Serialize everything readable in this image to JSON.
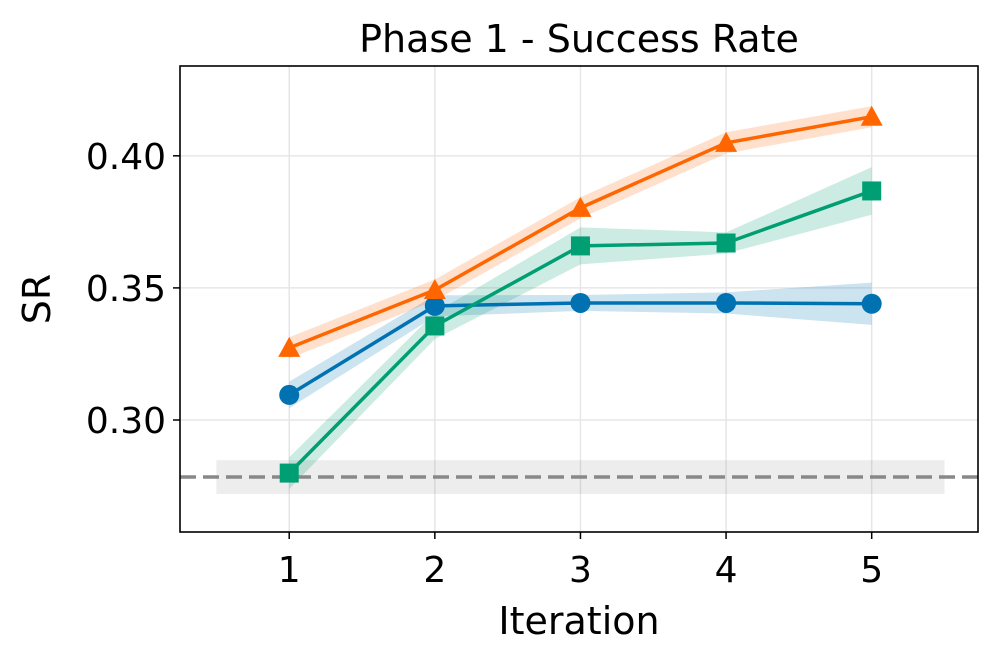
{
  "chart_data": {
    "type": "line",
    "title": "Phase 1 - Success Rate",
    "xlabel": "Iteration",
    "ylabel": "SR",
    "x": [
      1,
      2,
      3,
      4,
      5
    ],
    "xticks": [
      "1",
      "2",
      "3",
      "4",
      "5"
    ],
    "yticks": [
      "0.30",
      "0.35",
      "0.40"
    ],
    "ytick_values": [
      0.3,
      0.35,
      0.4
    ],
    "xlim": [
      0.25,
      5.73
    ],
    "ylim": [
      0.2576,
      0.434
    ],
    "grid": true,
    "series": [
      {
        "marker": "circle",
        "color": "#0072B2",
        "values": [
          0.3095,
          0.3432,
          0.3443,
          0.3443,
          0.344
        ],
        "err": [
          0.005,
          0.004,
          0.003,
          0.004,
          0.008
        ]
      },
      {
        "marker": "triangle",
        "color": "#FF6600",
        "values": [
          0.3273,
          0.3492,
          0.3803,
          0.4049,
          0.4148
        ],
        "err": [
          0.004,
          0.004,
          0.004,
          0.004,
          0.004
        ]
      },
      {
        "marker": "square",
        "color": "#009E73",
        "values": [
          0.2799,
          0.3356,
          0.3659,
          0.367,
          0.3867
        ],
        "err": [
          0.006,
          0.005,
          0.007,
          0.004,
          0.009
        ]
      }
    ],
    "baseline": {
      "value": 0.2784,
      "err": 0.0064,
      "color": "#888888",
      "style": "dashed",
      "band_x": [
        0.5,
        5.5
      ]
    }
  }
}
